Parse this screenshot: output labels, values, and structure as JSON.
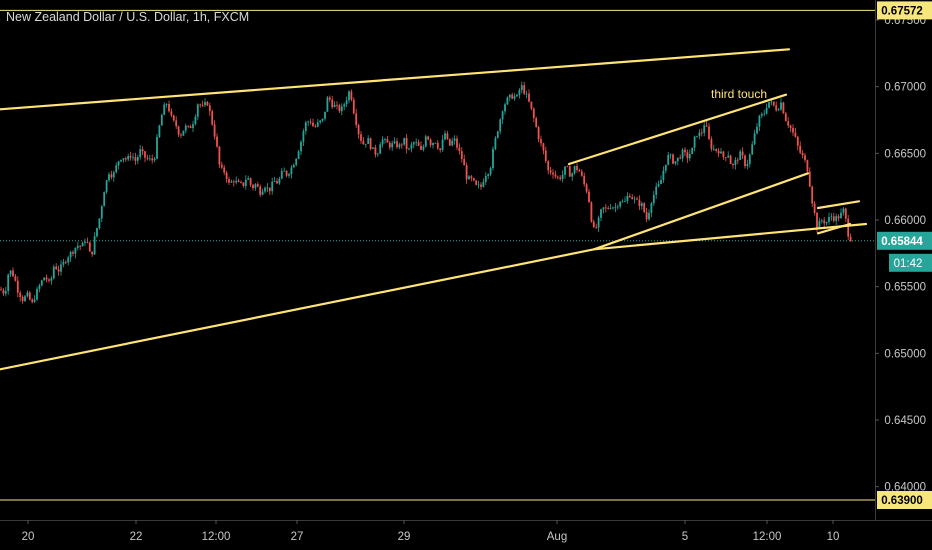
{
  "chart_data": {
    "type": "candlestick",
    "title": "New Zealand Dollar / U.S. Dollar, 1h, FXCM",
    "ylim": [
      0.6375,
      0.6765
    ],
    "y_ticks": [
      "0.67500",
      "0.67000",
      "0.66500",
      "0.66000",
      "0.65500",
      "0.65000",
      "0.64500",
      "0.64000"
    ],
    "x_ticks": [
      "20",
      "22",
      "12:00",
      "27",
      "29",
      "Aug",
      "5",
      "12:00",
      "10"
    ],
    "price_labels": {
      "upper": "0.67572",
      "current": "0.65844",
      "lower": "0.63900",
      "countdown": "01:42"
    },
    "upper_level": 0.67572,
    "lower_level": 0.639,
    "current_price": 0.65844,
    "annotation": "third touch",
    "ohlc_path": [
      [
        0,
        0.6548
      ],
      [
        5,
        0.6545
      ],
      [
        9,
        0.6563
      ],
      [
        14,
        0.6558
      ],
      [
        18,
        0.6547
      ],
      [
        23,
        0.654
      ],
      [
        27,
        0.6544
      ],
      [
        32,
        0.6537
      ],
      [
        36,
        0.6545
      ],
      [
        41,
        0.6553
      ],
      [
        45,
        0.6558
      ],
      [
        50,
        0.6551
      ],
      [
        54,
        0.6566
      ],
      [
        59,
        0.6562
      ],
      [
        63,
        0.6567
      ],
      [
        68,
        0.6573
      ],
      [
        72,
        0.6576
      ],
      [
        77,
        0.6581
      ],
      [
        82,
        0.658
      ],
      [
        86,
        0.6587
      ],
      [
        91,
        0.6571
      ],
      [
        95,
        0.6588
      ],
      [
        100,
        0.6603
      ],
      [
        104,
        0.6622
      ],
      [
        109,
        0.6636
      ],
      [
        113,
        0.6633
      ],
      [
        118,
        0.6644
      ],
      [
        122,
        0.6648
      ],
      [
        127,
        0.6645
      ],
      [
        131,
        0.6649
      ],
      [
        136,
        0.6644
      ],
      [
        140,
        0.6652
      ],
      [
        145,
        0.6647
      ],
      [
        149,
        0.6645
      ],
      [
        154,
        0.6645
      ],
      [
        158,
        0.6665
      ],
      [
        163,
        0.6683
      ],
      [
        167,
        0.6688
      ],
      [
        172,
        0.6675
      ],
      [
        176,
        0.6671
      ],
      [
        180,
        0.6663
      ],
      [
        185,
        0.667
      ],
      [
        189,
        0.6668
      ],
      [
        194,
        0.6675
      ],
      [
        198,
        0.6688
      ],
      [
        203,
        0.6684
      ],
      [
        207,
        0.6689
      ],
      [
        211,
        0.6677
      ],
      [
        216,
        0.6659
      ],
      [
        220,
        0.6638
      ],
      [
        225,
        0.6636
      ],
      [
        229,
        0.6627
      ],
      [
        234,
        0.663
      ],
      [
        238,
        0.6627
      ],
      [
        243,
        0.6626
      ],
      [
        247,
        0.6633
      ],
      [
        252,
        0.6624
      ],
      [
        256,
        0.6627
      ],
      [
        260,
        0.6621
      ],
      [
        265,
        0.6626
      ],
      [
        269,
        0.6622
      ],
      [
        274,
        0.6629
      ],
      [
        278,
        0.6628
      ],
      [
        283,
        0.6637
      ],
      [
        287,
        0.6634
      ],
      [
        292,
        0.664
      ],
      [
        296,
        0.6647
      ],
      [
        301,
        0.6659
      ],
      [
        305,
        0.6672
      ],
      [
        310,
        0.6675
      ],
      [
        314,
        0.6669
      ],
      [
        319,
        0.6673
      ],
      [
        323,
        0.6675
      ],
      [
        328,
        0.6693
      ],
      [
        332,
        0.6687
      ],
      [
        337,
        0.6684
      ],
      [
        341,
        0.6682
      ],
      [
        346,
        0.669
      ],
      [
        350,
        0.6698
      ],
      [
        354,
        0.6681
      ],
      [
        359,
        0.6664
      ],
      [
        363,
        0.6657
      ],
      [
        368,
        0.666
      ],
      [
        372,
        0.6653
      ],
      [
        377,
        0.6649
      ],
      [
        381,
        0.6661
      ],
      [
        386,
        0.6658
      ],
      [
        390,
        0.6656
      ],
      [
        395,
        0.6657
      ],
      [
        399,
        0.6655
      ],
      [
        404,
        0.666
      ],
      [
        408,
        0.6651
      ],
      [
        413,
        0.6658
      ],
      [
        417,
        0.6657
      ],
      [
        422,
        0.665
      ],
      [
        426,
        0.6665
      ],
      [
        431,
        0.6657
      ],
      [
        435,
        0.666
      ],
      [
        440,
        0.6652
      ],
      [
        445,
        0.6665
      ],
      [
        449,
        0.6655
      ],
      [
        454,
        0.6661
      ],
      [
        458,
        0.6653
      ],
      [
        463,
        0.6644
      ],
      [
        467,
        0.6631
      ],
      [
        472,
        0.663
      ],
      [
        476,
        0.6625
      ],
      [
        481,
        0.6625
      ],
      [
        485,
        0.6634
      ],
      [
        490,
        0.6638
      ],
      [
        494,
        0.6656
      ],
      [
        499,
        0.6672
      ],
      [
        503,
        0.6685
      ],
      [
        508,
        0.6691
      ],
      [
        512,
        0.6693
      ],
      [
        517,
        0.6692
      ],
      [
        521,
        0.6701
      ],
      [
        526,
        0.6694
      ],
      [
        530,
        0.6686
      ],
      [
        535,
        0.6673
      ],
      [
        539,
        0.6661
      ],
      [
        544,
        0.665
      ],
      [
        548,
        0.6637
      ],
      [
        553,
        0.6636
      ],
      [
        557,
        0.6631
      ],
      [
        562,
        0.6633
      ],
      [
        566,
        0.664
      ],
      [
        571,
        0.6633
      ],
      [
        575,
        0.664
      ],
      [
        580,
        0.6636
      ],
      [
        584,
        0.6627
      ],
      [
        588,
        0.662
      ],
      [
        593,
        0.6592
      ],
      [
        597,
        0.6595
      ],
      [
        602,
        0.6609
      ],
      [
        606,
        0.6608
      ],
      [
        611,
        0.6611
      ],
      [
        615,
        0.6609
      ],
      [
        620,
        0.6615
      ],
      [
        624,
        0.6612
      ],
      [
        629,
        0.662
      ],
      [
        633,
        0.6616
      ],
      [
        638,
        0.6613
      ],
      [
        642,
        0.6611
      ],
      [
        647,
        0.66
      ],
      [
        651,
        0.6614
      ],
      [
        656,
        0.6623
      ],
      [
        660,
        0.6627
      ],
      [
        665,
        0.6642
      ],
      [
        669,
        0.6649
      ],
      [
        674,
        0.6643
      ],
      [
        678,
        0.6646
      ],
      [
        683,
        0.6651
      ],
      [
        687,
        0.6647
      ],
      [
        692,
        0.6652
      ],
      [
        696,
        0.6665
      ],
      [
        701,
        0.6664
      ],
      [
        705,
        0.6674
      ],
      [
        710,
        0.6656
      ],
      [
        714,
        0.6653
      ],
      [
        719,
        0.6652
      ],
      [
        723,
        0.6647
      ],
      [
        728,
        0.665
      ],
      [
        732,
        0.6639
      ],
      [
        737,
        0.6646
      ],
      [
        741,
        0.665
      ],
      [
        746,
        0.664
      ],
      [
        750,
        0.6649
      ],
      [
        755,
        0.6665
      ],
      [
        759,
        0.6676
      ],
      [
        764,
        0.668
      ],
      [
        768,
        0.6689
      ],
      [
        772,
        0.6687
      ],
      [
        777,
        0.6683
      ],
      [
        781,
        0.6688
      ],
      [
        786,
        0.6675
      ],
      [
        790,
        0.667
      ],
      [
        795,
        0.6662
      ],
      [
        799,
        0.6652
      ],
      [
        804,
        0.6646
      ],
      [
        808,
        0.6637
      ],
      [
        812,
        0.6615
      ],
      [
        817,
        0.6595
      ],
      [
        822,
        0.66
      ],
      [
        826,
        0.6598
      ],
      [
        831,
        0.6603
      ],
      [
        835,
        0.6601
      ],
      [
        840,
        0.6603
      ],
      [
        844,
        0.6608
      ],
      [
        848,
        0.659
      ],
      [
        852,
        0.6584
      ]
    ],
    "trendlines": [
      {
        "x1": 0,
        "y1": 0.6683,
        "x2": 527,
        "y2": 0.6713
      },
      {
        "x1": 527,
        "y1": 0.6713,
        "x2": 789,
        "y2": 0.6728
      },
      {
        "x1": 0,
        "y1": 0.6488,
        "x2": 594,
        "y2": 0.6578
      },
      {
        "x1": 594,
        "y1": 0.6578,
        "x2": 808,
        "y2": 0.6635
      },
      {
        "x1": 569,
        "y1": 0.6642,
        "x2": 786,
        "y2": 0.6694
      },
      {
        "x1": 594,
        "y1": 0.6578,
        "x2": 866,
        "y2": 0.6597
      },
      {
        "x1": 818,
        "y1": 0.6609,
        "x2": 859,
        "y2": 0.6614
      },
      {
        "x1": 818,
        "y1": 0.659,
        "x2": 850,
        "y2": 0.6597
      }
    ],
    "grid": false,
    "colors": {
      "background": "#000000",
      "up": "#26a69a",
      "down": "#ef5350",
      "trendline": "#ffe376",
      "level": "#f7e67c",
      "current_price": "#26a69a",
      "axis_text": "#c7c7c7"
    }
  }
}
